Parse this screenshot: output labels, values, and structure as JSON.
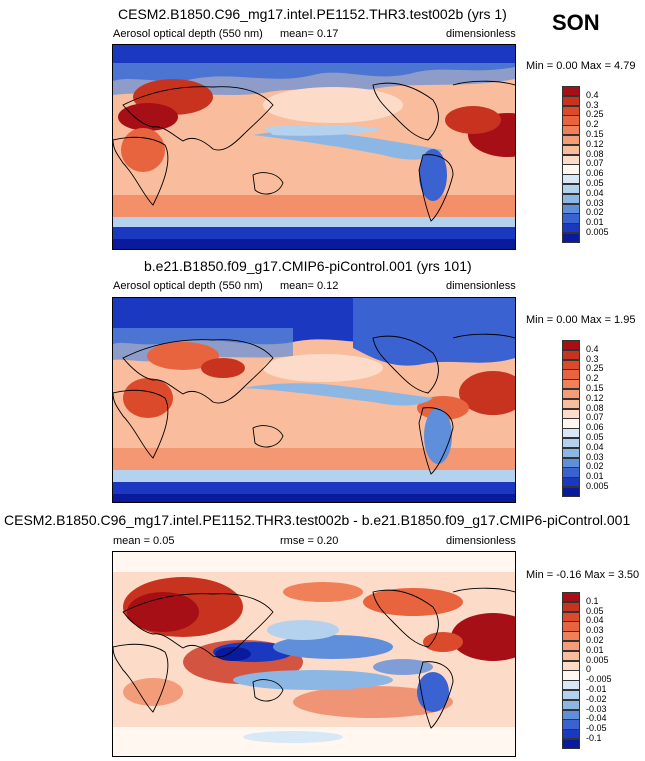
{
  "season": "SON",
  "panels": [
    {
      "title": "CESM2.B1850.C96_mg17.intel.PE1152.THR3.test002b (yrs 1)",
      "left_label": "Aerosol optical depth (550 nm)",
      "middle_label": "mean=  0.17",
      "right_label": "dimensionless",
      "minmax": "Min =  0.00 Max =  4.79",
      "kind": "abs"
    },
    {
      "title": "b.e21.B1850.f09_g17.CMIP6-piControl.001 (yrs 101)",
      "left_label": "Aerosol optical depth (550 nm)",
      "middle_label": "mean=  0.12",
      "right_label": "dimensionless",
      "minmax": "Min =  0.00 Max =  1.95",
      "kind": "abs2"
    },
    {
      "title": "CESM2.B1850.C96_mg17.intel.PE1152.THR3.test002b - b.e21.B1850.f09_g17.CMIP6-piControl.001",
      "left_label": "mean =  0.05",
      "middle_label": "rmse =  0.20",
      "right_label": "dimensionless",
      "minmax": "Min = -0.16 Max =  3.50",
      "kind": "diff"
    }
  ],
  "colorbars": {
    "abs": {
      "labels": [
        "0.4",
        "0.3",
        "0.25",
        "0.2",
        "0.15",
        "0.12",
        "0.08",
        "0.07",
        "0.06",
        "0.05",
        "0.04",
        "0.03",
        "0.02",
        "0.01",
        "0.005"
      ],
      "colors": [
        "#a50f15",
        "#c8331f",
        "#dc4a2c",
        "#e8643f",
        "#f08058",
        "#f59c78",
        "#f9bc9c",
        "#fcdcc8",
        "#fff7f0",
        "#d8e8f6",
        "#b4d2ee",
        "#8cb6e4",
        "#5f8fdb",
        "#3a62d0",
        "#1b38c0",
        "#0a1a9c"
      ]
    },
    "diff": {
      "labels": [
        "0.1",
        "0.05",
        "0.04",
        "0.03",
        "0.02",
        "0.01",
        "0.005",
        "0",
        "-0.005",
        "-0.01",
        "-0.02",
        "-0.03",
        "-0.04",
        "-0.05",
        "-0.1"
      ],
      "colors": [
        "#a50f15",
        "#c8331f",
        "#dc4a2c",
        "#e8643f",
        "#f08058",
        "#f59c78",
        "#f9bc9c",
        "#fcdcc8",
        "#fff7f0",
        "#d8e8f6",
        "#b4d2ee",
        "#8cb6e4",
        "#5f8fdb",
        "#3a62d0",
        "#1b38c0",
        "#0a1a9c"
      ]
    }
  }
}
